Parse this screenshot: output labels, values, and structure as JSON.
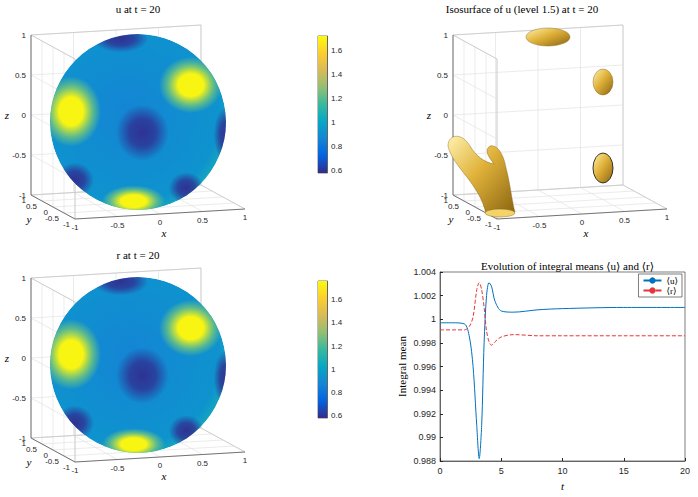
{
  "chart_data": [
    {
      "type": "surface",
      "title": "u at t = 20",
      "xlabel": "x",
      "ylabel": "y",
      "zlabel": "z",
      "xlim": [
        -1,
        1
      ],
      "ylim": [
        -1,
        1
      ],
      "zlim": [
        -1,
        1
      ],
      "xticks": [
        -1,
        -0.5,
        0,
        0.5,
        1
      ],
      "yticks": [
        -1,
        -0.5,
        0,
        0.5,
        1
      ],
      "zticks": [
        -1,
        -0.5,
        0,
        0.5,
        1
      ],
      "grid": true,
      "values_range": [
        0.6,
        1.7
      ],
      "colorbar": {
        "range": [
          0.58,
          1.72
        ],
        "ticks": [
          0.6,
          0.8,
          1,
          1.2,
          1.4,
          1.6
        ]
      }
    },
    {
      "type": "isosurface",
      "title": "Isosurface of u (level 1.5) at t = 20",
      "xlabel": "x",
      "ylabel": "y",
      "zlabel": "z",
      "xlim": [
        -1,
        1
      ],
      "ylim": [
        -1,
        1
      ],
      "zlim": [
        -1,
        1
      ],
      "xticks": [
        -1,
        -0.5,
        0,
        0.5,
        1
      ],
      "yticks": [
        -1,
        -0.5,
        0,
        0.5,
        1
      ],
      "zticks": [
        -1,
        -0.5,
        0,
        0.5,
        1
      ],
      "grid": true,
      "color": "#e0b23a"
    },
    {
      "type": "surface",
      "title": "r at t = 20",
      "xlabel": "x",
      "ylabel": "y",
      "zlabel": "z",
      "xlim": [
        -1,
        1
      ],
      "ylim": [
        -1,
        1
      ],
      "zlim": [
        -1,
        1
      ],
      "xticks": [
        -1,
        -0.5,
        0,
        0.5,
        1
      ],
      "yticks": [
        -1,
        -0.5,
        0,
        0.5,
        1
      ],
      "zticks": [
        -1,
        -0.5,
        0,
        0.5,
        1
      ],
      "grid": true,
      "values_range": [
        0.6,
        1.74
      ],
      "colorbar": {
        "range": [
          0.58,
          1.76
        ],
        "ticks": [
          0.6,
          0.8,
          1,
          1.2,
          1.4,
          1.6
        ]
      }
    },
    {
      "type": "line",
      "title": "Evolution of integral means ⟨u⟩ and ⟨r⟩",
      "xlabel": "t",
      "ylabel": "Integral mean",
      "x": [
        0,
        1,
        2,
        2.4,
        2.7,
        3.0,
        3.2,
        3.4,
        3.6,
        3.8,
        4.0,
        4.2,
        4.5,
        5,
        6,
        8,
        10,
        15,
        20
      ],
      "series": [
        {
          "name": "⟨u⟩",
          "color": "#0072bd",
          "line_style": "solid",
          "values": [
            0.9997,
            0.9997,
            0.9996,
            0.9985,
            0.996,
            0.991,
            0.9882,
            0.991,
            0.998,
            1.002,
            1.0031,
            1.0028,
            1.0015,
            1.0007,
            1.0006,
            1.0008,
            1.0009,
            1.001,
            1.001
          ]
        },
        {
          "name": "⟨r⟩",
          "color": "#e6353a",
          "line_style": "dashed",
          "values": [
            0.9991,
            0.9991,
            0.9991,
            0.9994,
            1.0002,
            1.0025,
            1.0031,
            1.0025,
            1.001,
            0.999,
            0.9981,
            0.9978,
            0.9981,
            0.9985,
            0.9987,
            0.9986,
            0.9986,
            0.9986,
            0.9986
          ]
        }
      ],
      "xlim": [
        0,
        20
      ],
      "xticks": [
        0,
        5,
        10,
        15,
        20
      ],
      "ylim": [
        0.988,
        1.004
      ],
      "yticks": [
        0.988,
        0.99,
        0.992,
        0.994,
        0.996,
        0.998,
        1,
        1.002,
        1.004
      ],
      "grid": false,
      "legend": "top-right"
    }
  ]
}
